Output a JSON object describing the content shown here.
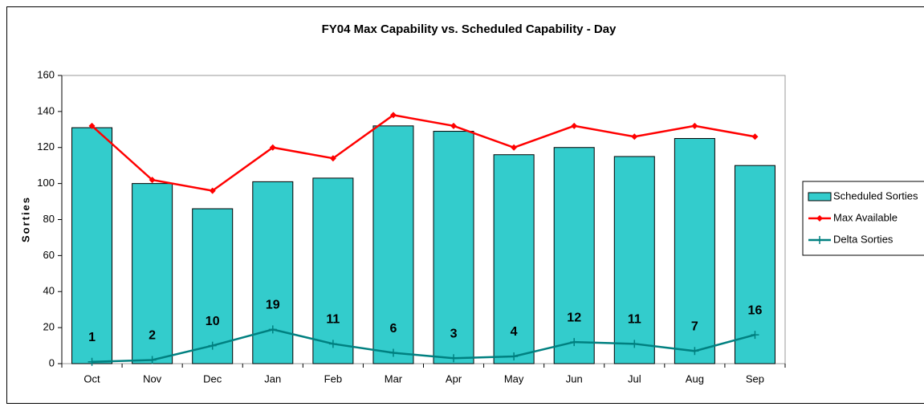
{
  "chart_data": {
    "type": "bar",
    "title": "FY04 Max Capability vs. Scheduled Capability - Day",
    "y_label": "Sorties",
    "categories": [
      "Oct",
      "Nov",
      "Dec",
      "Jan",
      "Feb",
      "Mar",
      "Apr",
      "May",
      "Jun",
      "Jul",
      "Aug",
      "Sep"
    ],
    "series": [
      {
        "name": "Scheduled Sorties",
        "type": "bar",
        "color": "#33CCCC",
        "values": [
          131,
          100,
          86,
          101,
          103,
          132,
          129,
          116,
          120,
          115,
          125,
          110
        ]
      },
      {
        "name": "Max Available",
        "type": "line",
        "marker": "diamond",
        "color": "#FF0000",
        "values": [
          132,
          102,
          96,
          120,
          114,
          138,
          132,
          120,
          132,
          126,
          132,
          126
        ]
      },
      {
        "name": "Delta Sorties",
        "type": "line",
        "marker": "plus",
        "color": "#008080",
        "data_labels": true,
        "values": [
          1,
          2,
          10,
          19,
          11,
          6,
          3,
          4,
          12,
          11,
          7,
          16
        ]
      }
    ],
    "ylim": [
      0,
      160
    ],
    "yticks": [
      0,
      20,
      40,
      60,
      80,
      100,
      120,
      140,
      160
    ],
    "legend": "right"
  }
}
